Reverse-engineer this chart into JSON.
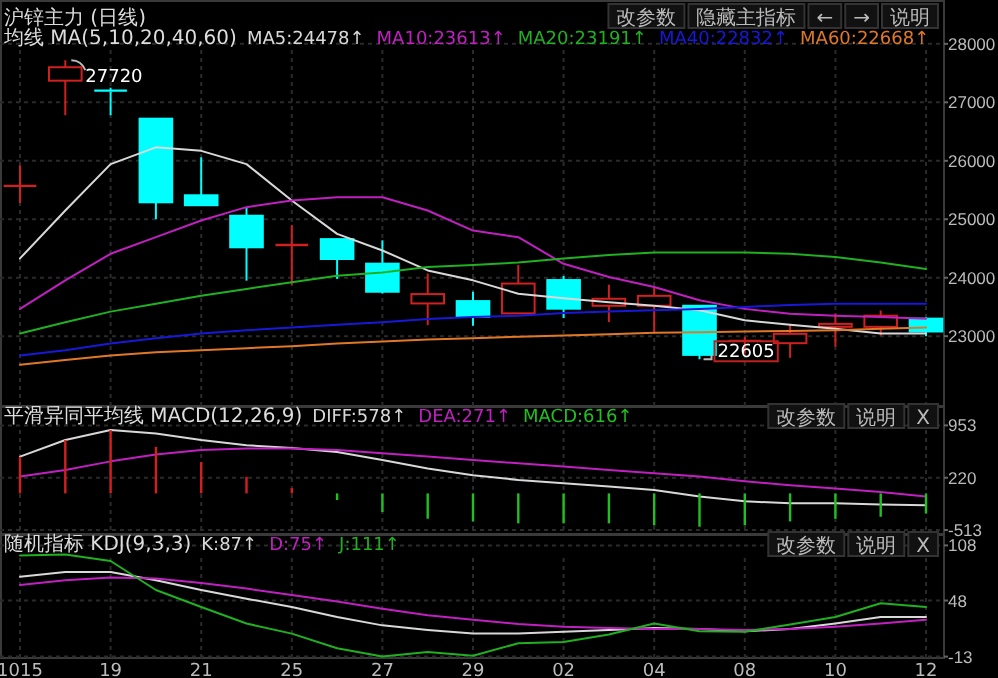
{
  "chart_data": [
    {
      "type": "candlestick",
      "title": "沪锌主力 (日线)",
      "legend_title": "均线 MA(5,10,20,40,60)",
      "legend": "top",
      "grid": true,
      "tick_labels": "y",
      "categories": [
        "1015",
        null,
        "19",
        null,
        "21",
        null,
        "25",
        null,
        "27",
        null,
        "29",
        null,
        "02",
        null,
        "04",
        null,
        "08",
        null,
        "10",
        null,
        "12"
      ],
      "ylim": [
        21840,
        28750
      ],
      "yticks": [
        23000,
        24000,
        25000,
        26000,
        27000,
        28000
      ],
      "ohlc": [
        [
          25570,
          25920,
          25280,
          25570
        ],
        [
          27370,
          27720,
          26780,
          27600
        ],
        [
          27200,
          27250,
          26780,
          27180
        ],
        [
          26720,
          26720,
          25000,
          25290
        ],
        [
          25410,
          26060,
          25240,
          25240
        ],
        [
          25060,
          25210,
          23950,
          24520
        ],
        [
          24560,
          24900,
          23880,
          24560
        ],
        [
          24660,
          24660,
          23980,
          24320
        ],
        [
          24240,
          24640,
          23730,
          23760
        ],
        [
          23560,
          24070,
          23190,
          23720
        ],
        [
          23600,
          23760,
          23180,
          23330
        ],
        [
          23390,
          24220,
          23380,
          23900
        ],
        [
          23960,
          24030,
          23310,
          23470
        ],
        [
          23520,
          23880,
          23240,
          23640
        ],
        [
          23520,
          23840,
          23050,
          23690
        ],
        [
          23520,
          23520,
          22605,
          22680
        ],
        [
          22900,
          22990,
          22700,
          22920
        ],
        [
          22880,
          23210,
          22630,
          23040
        ],
        [
          23160,
          23390,
          22820,
          23210
        ],
        [
          23160,
          23440,
          23010,
          23350
        ],
        [
          23300,
          23320,
          23000,
          23080
        ]
      ],
      "colors": [
        "#d02020",
        "#d02020",
        "#00ffff",
        "#00ffff",
        "#00ffff",
        "#00ffff",
        "#d02020",
        "#00ffff",
        "#00ffff",
        "#d02020",
        "#00ffff",
        "#d02020",
        "#00ffff",
        "#d02020",
        "#d02020",
        "#00ffff",
        "#d02020",
        "#d02020",
        "#d02020",
        "#d02020",
        "#00ffff"
      ],
      "series": [
        {
          "type": "line",
          "name": "MA5:24478↑",
          "color": "#d8d8d8",
          "values": [
            24330,
            25150,
            25943,
            26230,
            26170,
            25943,
            25320,
            24750,
            24466,
            24125,
            23955,
            23726,
            23648,
            23580,
            23520,
            23443,
            23273,
            23194,
            23126,
            23045,
            23045
          ]
        },
        {
          "type": "line",
          "name": "MA10:23613↑",
          "color": "#c020c0",
          "values": [
            23467,
            23955,
            24409,
            24694,
            24978,
            25207,
            25320,
            25377,
            25377,
            25150,
            24807,
            24694,
            24238,
            24012,
            23842,
            23614,
            23467,
            23385,
            23351,
            23330,
            23300
          ]
        },
        {
          "type": "line",
          "name": "MA20:23191↑",
          "color": "#20b020",
          "values": [
            23045,
            23239,
            23420,
            23556,
            23692,
            23808,
            23921,
            24034,
            24091,
            24183,
            24217,
            24262,
            24330,
            24387,
            24432,
            24432,
            24432,
            24409,
            24353,
            24262,
            24149
          ]
        },
        {
          "type": "line",
          "name": "MA40:22832↑",
          "color": "#1818d8",
          "values": [
            22669,
            22761,
            22874,
            22966,
            23045,
            23102,
            23148,
            23194,
            23239,
            23296,
            23330,
            23351,
            23398,
            23420,
            23443,
            23467,
            23500,
            23535,
            23556,
            23556,
            23556
          ]
        },
        {
          "type": "line",
          "name": "MA60:22668↑",
          "color": "#e07828",
          "values": [
            22512,
            22591,
            22669,
            22727,
            22761,
            22795,
            22829,
            22874,
            22908,
            22942,
            22966,
            22990,
            23010,
            23034,
            23057,
            23068,
            23080,
            23090,
            23102,
            23126,
            23148
          ]
        }
      ],
      "annotations": [
        "改参数",
        "隐藏主指标",
        "←",
        "→",
        "说明",
        "27720",
        "22605"
      ]
    },
    {
      "type": "line",
      "legend_title": "平滑异同平均线 MACD(12,26,9)",
      "legend": "top",
      "grid": true,
      "tick_labels": "y",
      "categories": [
        "1015",
        null,
        "19",
        null,
        "21",
        null,
        "25",
        null,
        "27",
        null,
        "29",
        null,
        "02",
        null,
        "04",
        null,
        "08",
        null,
        "10",
        null,
        "12"
      ],
      "ylim": [
        -513,
        953
      ],
      "yticks": [
        -513,
        220,
        953
      ],
      "series": [
        {
          "type": "line",
          "name": "DIFF:578↑",
          "color": "#d8d8d8",
          "values": [
            516,
            749,
            889,
            841,
            749,
            674,
            637,
            581,
            469,
            348,
            253,
            189,
            141,
            96,
            49,
            -43,
            -111,
            -139,
            -139,
            -156,
            -165
          ]
        },
        {
          "type": "line",
          "name": "DEA:271↑",
          "color": "#c020c0",
          "values": [
            236,
            329,
            449,
            544,
            609,
            628,
            628,
            609,
            561,
            516,
            469,
            421,
            376,
            329,
            281,
            236,
            169,
            113,
            68,
            21,
            -43
          ]
        },
        {
          "type": "bar",
          "name": "MACD:616↑",
          "color": "#20c020",
          "colors": [
            "#d02020",
            "#d02020",
            "#d02020",
            "#d02020",
            "#d02020",
            "#d02020",
            "#d02020",
            "#20c020",
            "#20c020",
            "#20c020",
            "#20c020",
            "#20c020",
            "#20c020",
            "#20c020",
            "#20c020",
            "#20c020",
            "#20c020",
            "#20c020",
            "#20c020",
            "#20c020",
            "#20c020"
          ],
          "values": [
            513,
            747,
            887,
            653,
            439,
            233,
            75,
            -93,
            -261,
            -355,
            -392,
            -420,
            -420,
            -420,
            -448,
            -467,
            -448,
            -392,
            -355,
            -327,
            -280
          ]
        }
      ],
      "annotations": [
        "改参数",
        "说明",
        "X"
      ]
    },
    {
      "type": "line",
      "legend_title": "随机指标 KDJ(9,3,3)",
      "legend": "top",
      "grid": true,
      "categories": [
        "1015",
        null,
        "19",
        null,
        "21",
        null,
        "25",
        null,
        "27",
        null,
        "29",
        null,
        "02",
        null,
        "04",
        null,
        "08",
        null,
        "10",
        null,
        "12"
      ],
      "ylim": [
        -13,
        108
      ],
      "yticks": [
        -13,
        48,
        108
      ],
      "series": [
        {
          "type": "line",
          "name": "K:87↑",
          "color": "#d8d8d8",
          "values": [
            74,
            79,
            79,
            70,
            59.5,
            50,
            41,
            30,
            21,
            16,
            12,
            12,
            14,
            16,
            18,
            17,
            14.5,
            17,
            23,
            30,
            30
          ]
        },
        {
          "type": "line",
          "name": "D:75↑",
          "color": "#c020c0",
          "values": [
            65,
            70,
            73,
            72,
            67,
            61,
            54,
            47,
            39,
            32,
            27,
            22.5,
            19.6,
            18,
            17,
            17,
            16,
            17,
            19.6,
            23,
            27
          ]
        },
        {
          "type": "line",
          "name": "J:111↑",
          "color": "#20b020",
          "values": [
            97,
            98,
            91,
            59.5,
            41,
            23,
            12,
            -4,
            -13,
            -8,
            -12,
            1.5,
            3,
            11,
            23,
            14.5,
            14,
            22,
            30,
            45,
            41
          ]
        }
      ],
      "annotations": [
        "改参数",
        "说明",
        "X"
      ]
    }
  ]
}
